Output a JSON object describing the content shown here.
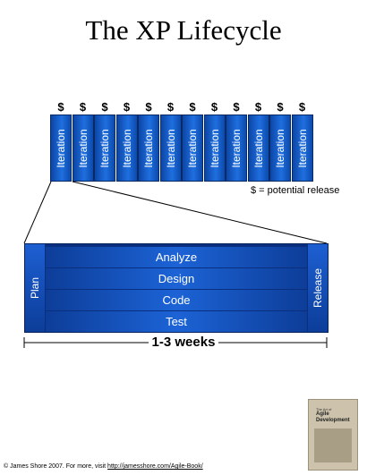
{
  "page": {
    "title": "The XP Lifecycle"
  },
  "iterations": {
    "labels": [
      "Iteration",
      "Iteration",
      "Iteration",
      "Iteration",
      "Iteration",
      "Iteration",
      "Iteration",
      "Iteration",
      "Iteration",
      "Iteration",
      "Iteration",
      "Iteration"
    ],
    "release_marker": "$",
    "legend": "$ = potential release"
  },
  "detail": {
    "plan_label": "Plan",
    "release_label": "Release",
    "phases": [
      "Analyze",
      "Design",
      "Code",
      "Test"
    ],
    "duration": "1-3 weeks"
  },
  "footer": {
    "text": "© James Shore 2007.  For more, visit",
    "link": "http://jamesshore.com/Agile-Book/"
  },
  "book": {
    "small": "The Art of",
    "title": "Agile Development"
  },
  "colors": {
    "iteration_blue": "#1f6fe0",
    "panel_navy": "#0a2f7f"
  }
}
